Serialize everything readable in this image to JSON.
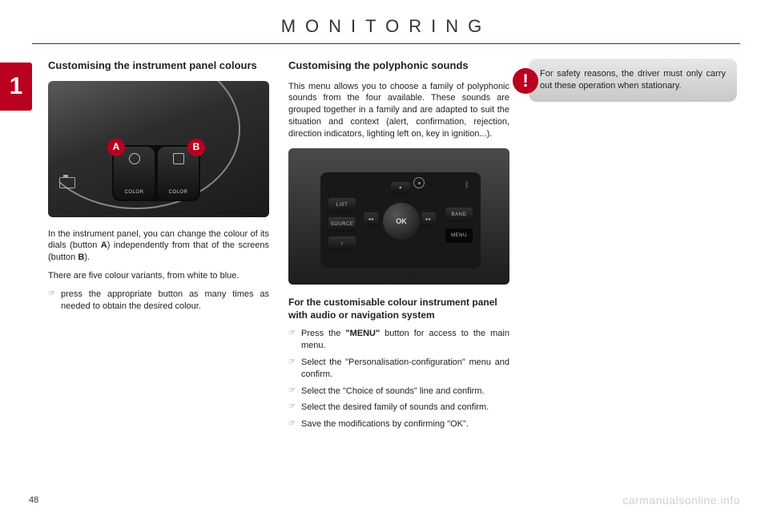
{
  "header": {
    "title": "MONITORING"
  },
  "side_tab": {
    "number": "1"
  },
  "col1": {
    "heading": "Customising the instrument panel colours",
    "fig": {
      "badge_a": "A",
      "badge_b": "B",
      "button_a_label": "COLOR",
      "button_b_label": "COLOR"
    },
    "p1_prefix": "In the instrument panel, you can change the colour of its dials (button ",
    "p1_bold1": "A",
    "p1_mid": ") independently from that of the screens (button ",
    "p1_bold2": "B",
    "p1_suffix": ").",
    "p2": "There are five colour variants, from white to blue.",
    "bullet1": "press the appropriate button as many times as needed to obtain the desired colour."
  },
  "col2": {
    "heading": "Customising the polyphonic sounds",
    "intro": "This menu allows you to choose a family of polyphonic sounds from the four available. These sounds are grouped together in a family and are adapted to suit the situation and context (alert, confirmation, rejection, direction indicators, lighting left on, key in ignition...).",
    "fig": {
      "ok": "OK",
      "list": "LIST",
      "source": "SOURCE",
      "band": "BAND",
      "menu": "MENU",
      "music": "♪",
      "rev": "◂◂",
      "fwd": "▸▸",
      "up": "▴",
      "bt": "ᛒ"
    },
    "subheading": "For the customisable colour instrument panel with audio or navigation system",
    "b1_prefix": "Press the ",
    "b1_bold": "\"MENU\"",
    "b1_suffix": " button for access to the main menu.",
    "b2": "Select the \"Personalisation-configuration\" menu and confirm.",
    "b3": "Select the \"Choice of sounds\" line and confirm.",
    "b4": "Select the desired family of sounds and confirm.",
    "b5": "Save the modifications by confirming \"OK\"."
  },
  "warning": {
    "text": "For safety reasons, the driver must only carry out these operation when stationary.",
    "mark": "!"
  },
  "footer": {
    "page": "48",
    "watermark": "carmanualsonline.info"
  },
  "colors": {
    "accent": "#b9001f",
    "panel_bg": "#e0e0e0"
  }
}
